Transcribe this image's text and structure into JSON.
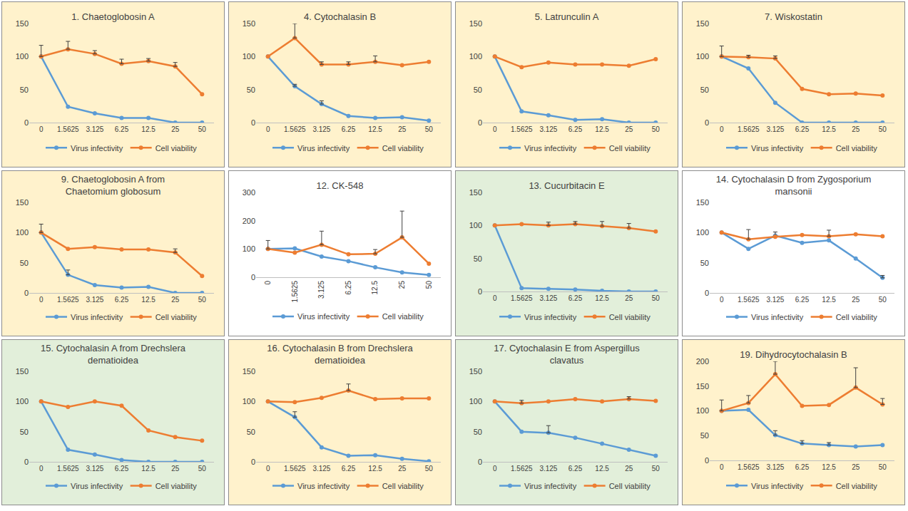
{
  "chart_data": [
    {
      "type": "line",
      "title": "1. Chaetoglobosin A",
      "color": "#fff2cc",
      "categories": [
        "0",
        "1.5625",
        "3.125",
        "6.25",
        "12.5",
        "25",
        "50"
      ],
      "ylim": [
        0,
        150
      ],
      "yticks": [
        0,
        50,
        100,
        150
      ],
      "grid": false,
      "legend": "bottom",
      "series": [
        {
          "name": "Virus infectivity",
          "color": "#5b9bd5",
          "values": [
            100,
            24,
            14,
            7,
            7,
            0,
            0
          ],
          "errors": [
            null,
            null,
            null,
            null,
            null,
            null,
            null
          ]
        },
        {
          "name": "Cell viability",
          "color": "#ed7d31",
          "values": [
            100,
            111,
            104,
            89,
            93,
            85,
            43
          ],
          "errors": [
            17,
            12,
            5,
            7,
            4,
            6,
            null
          ]
        }
      ]
    },
    {
      "type": "line",
      "title": "4. Cytochalasin B",
      "color": "#fff2cc",
      "categories": [
        "0",
        "1.5625",
        "3.125",
        "6.25",
        "12.5",
        "25",
        "50"
      ],
      "ylim": [
        0,
        150
      ],
      "yticks": [
        0,
        50,
        100,
        150
      ],
      "grid": false,
      "legend": "bottom",
      "series": [
        {
          "name": "Virus infectivity",
          "color": "#5b9bd5",
          "values": [
            100,
            55,
            28,
            10,
            7,
            8,
            3
          ],
          "errors": [
            null,
            3,
            5,
            null,
            null,
            null,
            null
          ]
        },
        {
          "name": "Cell viability",
          "color": "#ed7d31",
          "values": [
            100,
            128,
            88,
            88,
            92,
            87,
            92
          ],
          "errors": [
            null,
            22,
            4,
            4,
            9,
            null,
            null
          ]
        }
      ]
    },
    {
      "type": "line",
      "title": "5. Latrunculin A",
      "color": "#fff2cc",
      "categories": [
        "0",
        "1.5625",
        "3.125",
        "6.25",
        "12.5",
        "25",
        "50"
      ],
      "ylim": [
        0,
        150
      ],
      "yticks": [
        0,
        50,
        100,
        150
      ],
      "grid": false,
      "legend": "bottom",
      "series": [
        {
          "name": "Virus infectivity",
          "color": "#5b9bd5",
          "values": [
            100,
            17,
            11,
            4,
            5,
            0,
            0
          ],
          "errors": [
            null,
            null,
            null,
            null,
            null,
            null,
            null
          ]
        },
        {
          "name": "Cell viability",
          "color": "#ed7d31",
          "values": [
            100,
            84,
            91,
            88,
            88,
            86,
            96
          ],
          "errors": [
            null,
            null,
            null,
            null,
            null,
            null,
            null
          ]
        }
      ]
    },
    {
      "type": "line",
      "title": "7. Wiskostatin",
      "color": "#fff2cc",
      "categories": [
        "0",
        "1.5625",
        "3.125",
        "6.25",
        "12.5",
        "25",
        "50"
      ],
      "ylim": [
        0,
        150
      ],
      "yticks": [
        0,
        50,
        100,
        150
      ],
      "grid": false,
      "legend": "bottom",
      "series": [
        {
          "name": "Virus infectivity",
          "color": "#5b9bd5",
          "values": [
            100,
            82,
            30,
            0,
            0,
            0,
            0
          ],
          "errors": [
            null,
            null,
            null,
            null,
            null,
            null,
            null
          ]
        },
        {
          "name": "Cell viability",
          "color": "#ed7d31",
          "values": [
            100,
            99,
            97,
            51,
            43,
            44,
            41
          ],
          "errors": [
            16,
            3,
            4,
            null,
            null,
            null,
            null
          ]
        }
      ]
    },
    {
      "type": "line",
      "title": "9. Chaetoglobosin A from\nChaetomium globosum",
      "color": "#fff2cc",
      "categories": [
        "0",
        "1.5625",
        "3.125",
        "6.25",
        "12.5",
        "25",
        "50"
      ],
      "ylim": [
        0,
        150
      ],
      "yticks": [
        0,
        50,
        100,
        150
      ],
      "grid": false,
      "legend": "bottom",
      "series": [
        {
          "name": "Virus infectivity",
          "color": "#5b9bd5",
          "values": [
            100,
            30,
            13,
            9,
            10,
            0,
            0
          ],
          "errors": [
            null,
            8,
            null,
            null,
            null,
            null,
            null
          ]
        },
        {
          "name": "Cell viability",
          "color": "#ed7d31",
          "values": [
            100,
            73,
            76,
            72,
            72,
            67,
            28
          ],
          "errors": [
            14,
            null,
            null,
            null,
            null,
            6,
            null
          ]
        }
      ]
    },
    {
      "type": "line",
      "title": "12. CK-548",
      "color": "#ffffff",
      "categories": [
        "0",
        "1.5625",
        "3.125",
        "6.25",
        "12.5",
        "25",
        "50"
      ],
      "ylim": [
        0,
        300
      ],
      "yticks": [
        0,
        100,
        200,
        300
      ],
      "grid": false,
      "legend": "bottom",
      "series": [
        {
          "name": "Virus infectivity",
          "color": "#5b9bd5",
          "values": [
            100,
            102,
            73,
            57,
            35,
            17,
            8
          ],
          "errors": [
            null,
            null,
            null,
            null,
            null,
            null,
            null
          ]
        },
        {
          "name": "Cell viability",
          "color": "#ed7d31",
          "values": [
            100,
            87,
            115,
            81,
            83,
            141,
            48
          ],
          "errors": [
            30,
            null,
            48,
            null,
            15,
            93,
            null
          ]
        }
      ]
    },
    {
      "type": "line",
      "title": "13. Cucurbitacin E",
      "color": "#e2efda",
      "categories": [
        "0",
        "1.5625",
        "3.125",
        "6.25",
        "12.5",
        "25",
        "50"
      ],
      "ylim": [
        0,
        150
      ],
      "yticks": [
        0,
        50,
        100,
        150
      ],
      "grid": false,
      "legend": "bottom",
      "series": [
        {
          "name": "Virus infectivity",
          "color": "#5b9bd5",
          "values": [
            100,
            5,
            4,
            3,
            1,
            0,
            0
          ],
          "errors": [
            null,
            null,
            null,
            null,
            null,
            null,
            null
          ]
        },
        {
          "name": "Cell viability",
          "color": "#ed7d31",
          "values": [
            100,
            102,
            100,
            102,
            99,
            96,
            91
          ],
          "errors": [
            null,
            null,
            5,
            4,
            7,
            7,
            null
          ]
        }
      ]
    },
    {
      "type": "line",
      "title": "14. Cytochalasin D from Zygosporium\nmansonii",
      "color": "#ffffff",
      "categories": [
        "0",
        "1.5625",
        "3.125",
        "6.25",
        "12.5",
        "25",
        "50"
      ],
      "ylim": [
        0,
        150
      ],
      "yticks": [
        0,
        50,
        100,
        150
      ],
      "grid": false,
      "legend": "bottom",
      "series": [
        {
          "name": "Virus infectivity",
          "color": "#5b9bd5",
          "values": [
            100,
            73,
            95,
            83,
            87,
            57,
            25
          ],
          "errors": [
            null,
            null,
            6,
            null,
            null,
            null,
            4
          ]
        },
        {
          "name": "Cell viability",
          "color": "#ed7d31",
          "values": [
            100,
            89,
            93,
            96,
            94,
            97,
            94
          ],
          "errors": [
            null,
            16,
            null,
            null,
            10,
            null,
            null
          ]
        }
      ]
    },
    {
      "type": "line",
      "title": "15. Cytochalasin A from Drechslera\ndematioidea",
      "color": "#e2efda",
      "categories": [
        "0",
        "1.5625",
        "3.125",
        "6.25",
        "12.5",
        "25",
        "50"
      ],
      "ylim": [
        0,
        150
      ],
      "yticks": [
        0,
        50,
        100,
        150
      ],
      "grid": false,
      "legend": "bottom",
      "series": [
        {
          "name": "Virus infectivity",
          "color": "#5b9bd5",
          "values": [
            100,
            20,
            12,
            3,
            0,
            0,
            0
          ],
          "errors": [
            null,
            null,
            null,
            null,
            null,
            null,
            null
          ]
        },
        {
          "name": "Cell viability",
          "color": "#ed7d31",
          "values": [
            100,
            91,
            100,
            93,
            52,
            41,
            35
          ],
          "errors": [
            null,
            null,
            null,
            null,
            null,
            null,
            null
          ]
        }
      ]
    },
    {
      "type": "line",
      "title": "16. Cytochalasin B from Drechslera\ndematioidea",
      "color": "#fff2cc",
      "categories": [
        "0",
        "1.5625",
        "3.125",
        "6.25",
        "12.5",
        "25",
        "50"
      ],
      "ylim": [
        0,
        150
      ],
      "yticks": [
        0,
        50,
        100,
        150
      ],
      "grid": false,
      "legend": "bottom",
      "series": [
        {
          "name": "Virus infectivity",
          "color": "#5b9bd5",
          "values": [
            100,
            74,
            24,
            10,
            11,
            5,
            1
          ],
          "errors": [
            null,
            9,
            null,
            null,
            null,
            null,
            null
          ]
        },
        {
          "name": "Cell viability",
          "color": "#ed7d31",
          "values": [
            100,
            99,
            106,
            118,
            104,
            105,
            105
          ],
          "errors": [
            null,
            null,
            null,
            11,
            null,
            null,
            null
          ]
        }
      ]
    },
    {
      "type": "line",
      "title": "17. Cytochalasin E from Aspergillus\nclavatus",
      "color": "#e2efda",
      "categories": [
        "0",
        "1.5625",
        "3.125",
        "6.25",
        "12.5",
        "25",
        "50"
      ],
      "ylim": [
        0,
        150
      ],
      "yticks": [
        0,
        50,
        100,
        150
      ],
      "grid": false,
      "legend": "bottom",
      "series": [
        {
          "name": "Virus infectivity",
          "color": "#5b9bd5",
          "values": [
            100,
            50,
            48,
            40,
            30,
            20,
            10
          ],
          "errors": [
            null,
            null,
            12,
            null,
            null,
            null,
            null
          ]
        },
        {
          "name": "Cell viability",
          "color": "#ed7d31",
          "values": [
            100,
            97,
            100,
            104,
            100,
            104,
            101
          ],
          "errors": [
            null,
            5,
            null,
            null,
            null,
            4,
            null
          ]
        }
      ]
    },
    {
      "type": "line",
      "title": "19. Dihydrocytochalasin B",
      "color": "#fff2cc",
      "categories": [
        "0",
        "1.5625",
        "3.125",
        "6.25",
        "12.5",
        "25",
        "50"
      ],
      "ylim": [
        0,
        200
      ],
      "yticks": [
        0,
        50,
        100,
        150,
        200
      ],
      "grid": false,
      "legend": "bottom",
      "series": [
        {
          "name": "Virus infectivity",
          "color": "#5b9bd5",
          "values": [
            100,
            102,
            51,
            34,
            31,
            28,
            31
          ],
          "errors": [
            null,
            null,
            9,
            6,
            5,
            null,
            null
          ]
        },
        {
          "name": "Cell viability",
          "color": "#ed7d31",
          "values": [
            100,
            116,
            174,
            110,
            112,
            147,
            113
          ],
          "errors": [
            22,
            15,
            26,
            null,
            null,
            40,
            12
          ]
        }
      ]
    }
  ]
}
